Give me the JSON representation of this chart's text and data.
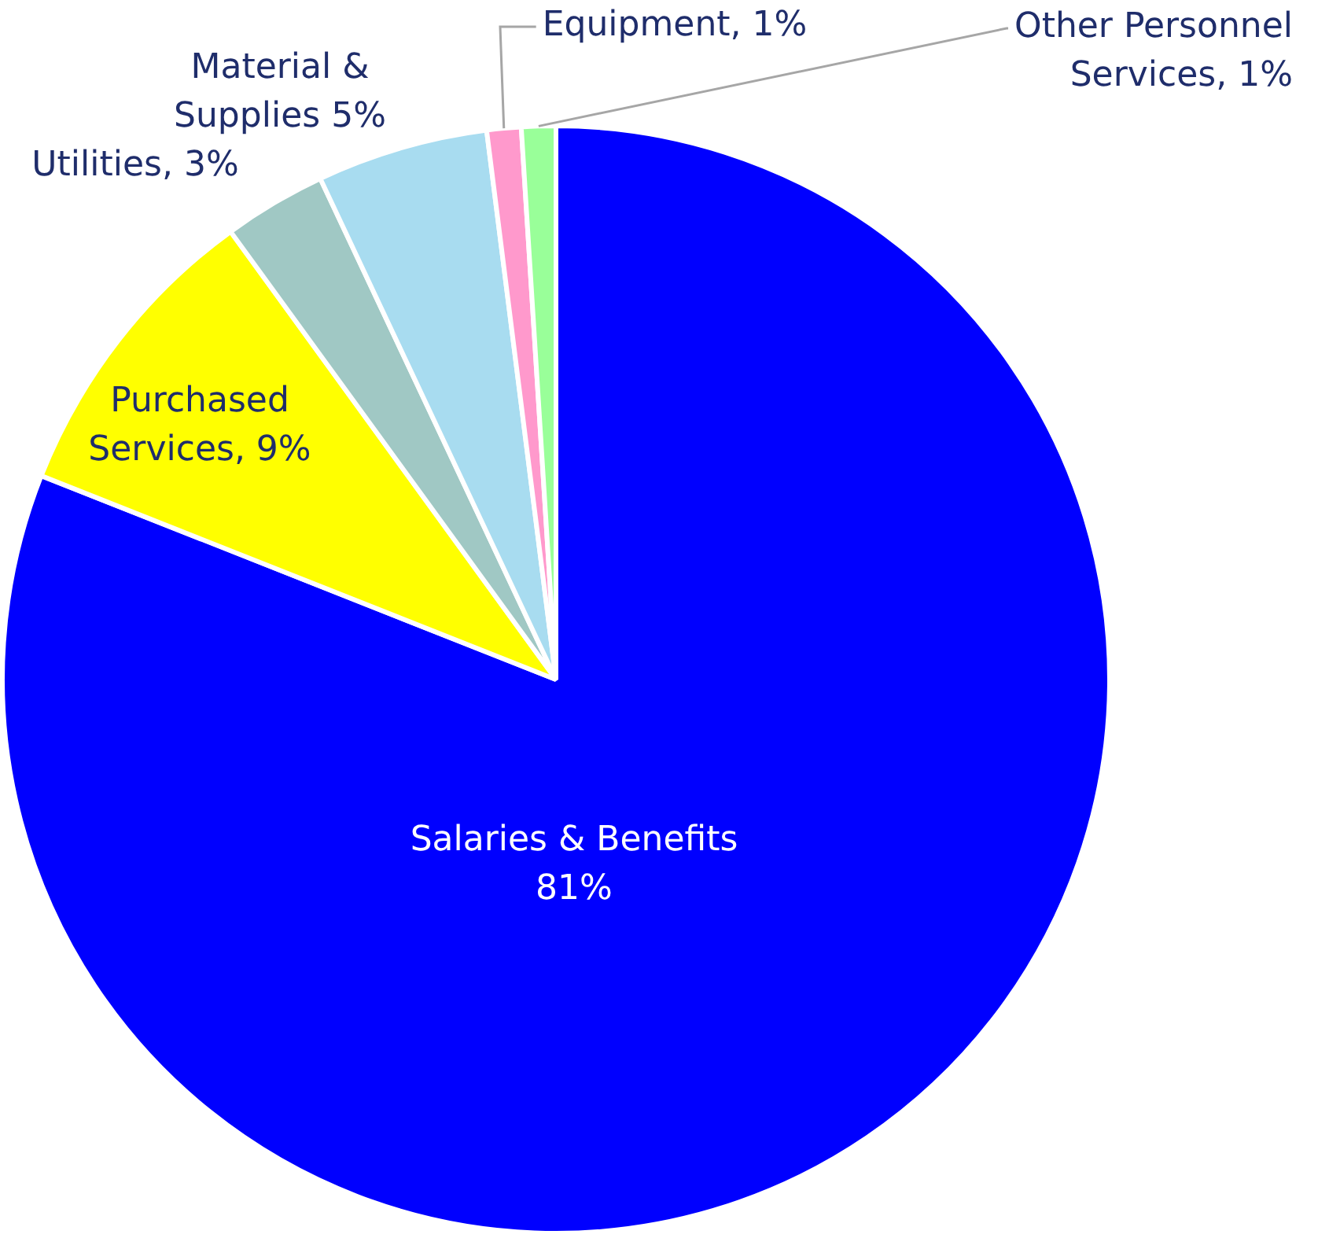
{
  "chart_data": {
    "type": "pie",
    "categories": [
      "Salaries & Benefits",
      "Purchased Services",
      "Utilities",
      "Material & Supplies",
      "Equipment",
      "Other Personnel Services"
    ],
    "values": [
      81,
      9,
      3,
      5,
      1,
      1
    ],
    "colors": [
      "#0000ff",
      "#ffff00",
      "#a0c8c4",
      "#a8dcf0",
      "#ff99cc",
      "#99ff99"
    ],
    "value_labels": [
      "81%",
      "9%",
      "3%",
      "5%",
      "1%",
      "1%"
    ],
    "legend": false
  }
}
